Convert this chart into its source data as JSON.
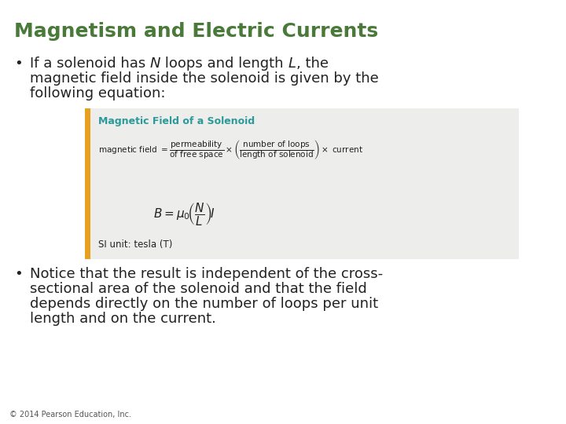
{
  "title": "Magnetism and Electric Currents",
  "title_color": "#4a7a3a",
  "bg_color": "#ffffff",
  "box_title": "Magnetic Field of a Solenoid",
  "box_title_color": "#2b9a9a",
  "box_bg": "#ededeb",
  "box_border_color": "#e8a020",
  "footer": "© 2014 Pearson Education, Inc.",
  "text_color": "#222222",
  "font_size_title": 18,
  "font_size_body": 13,
  "font_size_box_title": 9,
  "font_size_box_body": 8.5,
  "font_size_footer": 7
}
